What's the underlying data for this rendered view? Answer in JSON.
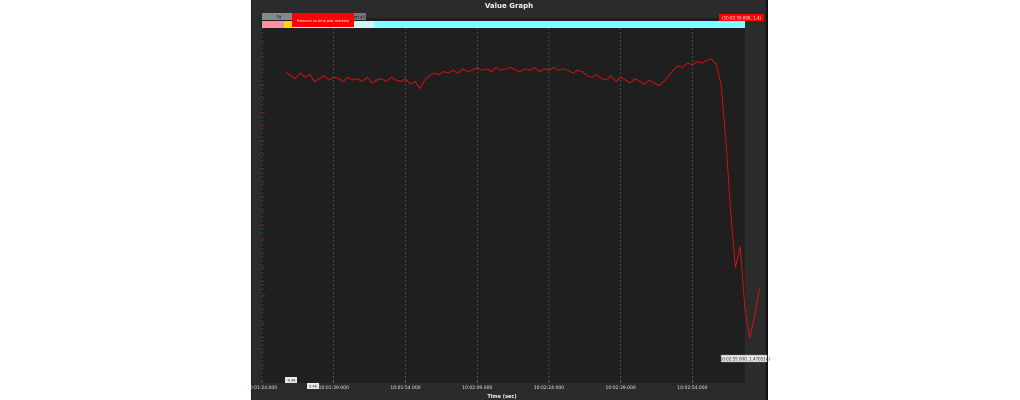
{
  "window": {
    "title": "Value Graph"
  },
  "toolbar": {
    "button_1": "Fit",
    "button_2": "Restore view",
    "button_3": "Zoom all",
    "label_red": "Pressure vs time plot markers"
  },
  "top_right_readout": "(10:02:59.000, 1.4)",
  "cursor_readout": "(10:02:55.000, 1.470514)",
  "small_tags": [
    "-0.46",
    "0.46"
  ],
  "chart_data": {
    "type": "line",
    "xlabel": "Time (sec)",
    "ylabel": "",
    "x_tick_labels": [
      "10:01:24.000",
      "10:01:39.000",
      "10:01:54.000",
      "10:02:09.000",
      "10:02:24.000",
      "10:02:39.000",
      "10:02:54.000"
    ],
    "x_ticks_seconds": [
      0,
      15,
      30,
      45,
      60,
      75,
      90
    ],
    "xlim_seconds": [
      0,
      101
    ],
    "y_ticks": [
      1.1,
      1.2,
      1.3,
      1.4,
      1.5,
      1.6,
      1.7,
      1.8,
      1.9,
      2.0,
      2.1,
      2.2,
      2.3,
      2.4,
      2.5,
      2.6,
      2.7,
      2.8,
      2.9,
      3.0,
      3.1,
      3.2,
      3.3,
      3.4
    ],
    "ylim": [
      1.0,
      3.5
    ],
    "grid": true,
    "series": [
      {
        "color": "#e01010",
        "x_start_seconds": 5,
        "x_step_seconds": 1,
        "values": [
          3.19,
          3.16,
          3.14,
          3.18,
          3.15,
          3.17,
          3.12,
          3.14,
          3.16,
          3.13,
          3.15,
          3.14,
          3.12,
          3.15,
          3.13,
          3.14,
          3.12,
          3.15,
          3.11,
          3.13,
          3.14,
          3.12,
          3.15,
          3.13,
          3.12,
          3.14,
          3.1,
          3.12,
          3.07,
          3.13,
          3.16,
          3.18,
          3.17,
          3.19,
          3.18,
          3.2,
          3.18,
          3.21,
          3.19,
          3.2,
          3.22,
          3.2,
          3.21,
          3.19,
          3.22,
          3.2,
          3.21,
          3.22,
          3.2,
          3.19,
          3.21,
          3.2,
          3.22,
          3.19,
          3.21,
          3.2,
          3.22,
          3.2,
          3.21,
          3.2,
          3.18,
          3.2,
          3.19,
          3.16,
          3.15,
          3.17,
          3.14,
          3.13,
          3.16,
          3.12,
          3.15,
          3.13,
          3.11,
          3.14,
          3.12,
          3.1,
          3.13,
          3.11,
          3.09,
          3.12,
          3.16,
          3.2,
          3.23,
          3.22,
          3.25,
          3.24,
          3.26,
          3.25,
          3.27,
          3.28,
          3.24,
          3.1,
          2.7,
          2.2,
          1.8,
          1.95,
          1.5,
          1.3,
          1.45,
          1.65
        ]
      }
    ]
  },
  "colors": {
    "background": "#1f1f1f",
    "frame": "#2b2b2b",
    "line": "#e01010",
    "accent_bar": "#7fffff",
    "warn_yellow": "#ffd700",
    "pink": "#ff8fa3",
    "red": "#ff0000"
  }
}
